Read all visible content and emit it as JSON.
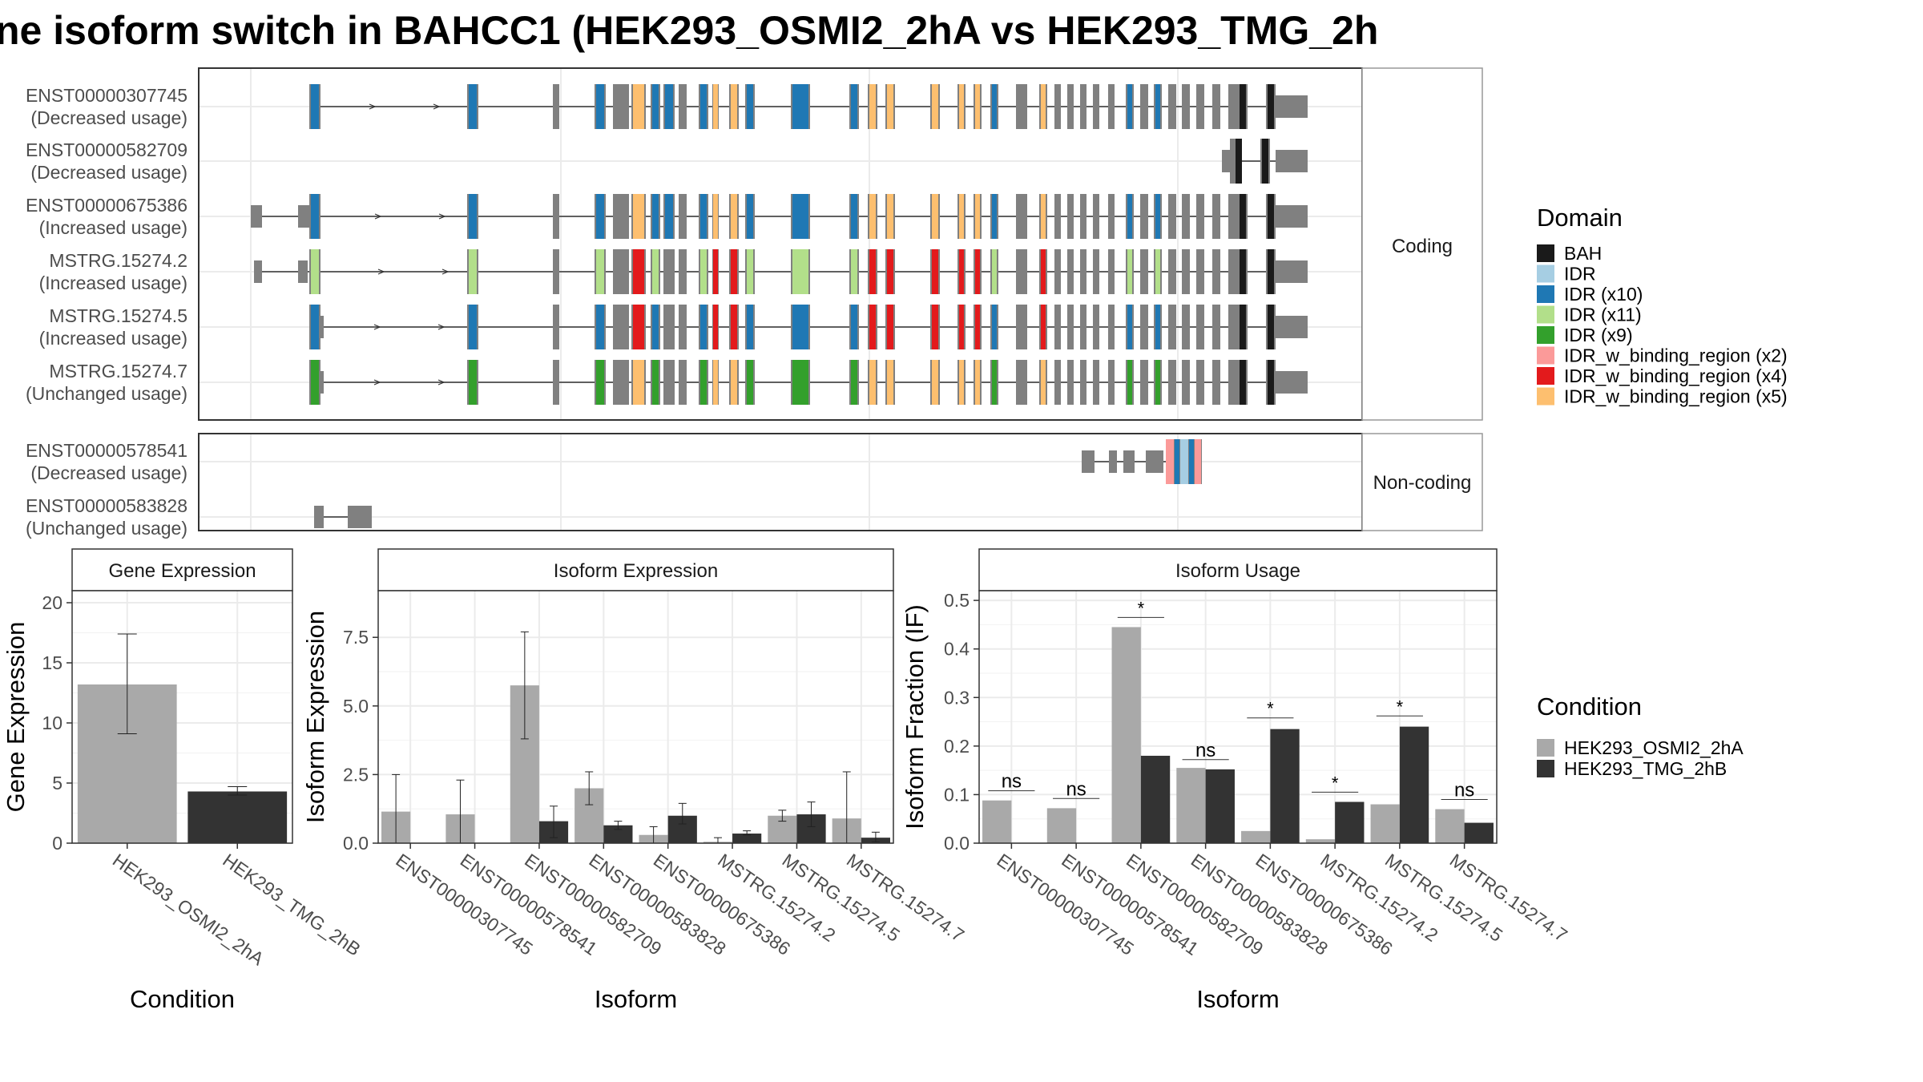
{
  "title": "ne isoform switch in BAHCC1 (HEK293_OSMI2_2hA vs HEK293_TMG_2h",
  "structure": {
    "coding_label": "Coding",
    "noncoding_label": "Non-coding",
    "coding": [
      {
        "id": "ENST00000307745",
        "usage": "(Decreased usage)",
        "extent": "long"
      },
      {
        "id": "ENST00000582709",
        "usage": "(Decreased usage)",
        "extent": "short"
      },
      {
        "id": "ENST00000675386",
        "usage": "(Increased usage)",
        "extent": "full"
      },
      {
        "id": "MSTRG.15274.2",
        "usage": "(Increased usage)",
        "extent": "full"
      },
      {
        "id": "MSTRG.15274.5",
        "usage": "(Increased usage)",
        "extent": "long"
      },
      {
        "id": "MSTRG.15274.7",
        "usage": "(Unchanged usage)",
        "extent": "long"
      }
    ],
    "noncoding": [
      {
        "id": "ENST00000578541",
        "usage": "(Decreased usage)"
      },
      {
        "id": "ENST00000583828",
        "usage": "(Unchanged usage)"
      }
    ]
  },
  "domain_legend": {
    "title": "Domain",
    "items": [
      {
        "label": "BAH",
        "color": "#1a1a1a"
      },
      {
        "label": "IDR",
        "color": "#a6cee3"
      },
      {
        "label": "IDR (x10)",
        "color": "#1f78b4"
      },
      {
        "label": "IDR (x11)",
        "color": "#b2df8a"
      },
      {
        "label": "IDR (x9)",
        "color": "#33a02c"
      },
      {
        "label": "IDR_w_binding_region (x2)",
        "color": "#fb9a99"
      },
      {
        "label": "IDR_w_binding_region (x4)",
        "color": "#e31a1c"
      },
      {
        "label": "IDR_w_binding_region (x5)",
        "color": "#fdbf6f"
      }
    ]
  },
  "condition_legend": {
    "title": "Condition",
    "items": [
      {
        "label": "HEK293_OSMI2_2hA",
        "color": "#a9a9a9"
      },
      {
        "label": "HEK293_TMG_2hB",
        "color": "#333333"
      }
    ]
  },
  "chart_data": [
    {
      "type": "bar",
      "panel_title": "Gene Expression",
      "xlabel": "Condition",
      "ylabel": "Gene Expression",
      "ylim": [
        0,
        21
      ],
      "yticks": [
        0,
        5,
        10,
        15,
        20
      ],
      "categories": [
        "HEK293_OSMI2_2hA",
        "HEK293_TMG_2hB"
      ],
      "values": [
        13.2,
        4.3
      ],
      "error_low": [
        9.1,
        4.0
      ],
      "error_high": [
        17.4,
        4.7
      ],
      "colors": [
        "#a9a9a9",
        "#333333"
      ]
    },
    {
      "type": "bar",
      "panel_title": "Isoform Expression",
      "xlabel": "Isoform",
      "ylabel": "Isoform Expression",
      "ylim": [
        0,
        9.2
      ],
      "yticks": [
        0,
        2.5,
        5,
        7.5
      ],
      "ytick_labels": [
        "0.0",
        "2.5",
        "5.0",
        "7.5"
      ],
      "categories": [
        "ENST00000307745",
        "ENST00000578541",
        "ENST00000582709",
        "ENST00000583828",
        "ENST00000675386",
        "MSTRG.15274.2",
        "MSTRG.15274.5",
        "MSTRG.15274.7"
      ],
      "series": [
        {
          "name": "HEK293_OSMI2_2hA",
          "color": "#a9a9a9",
          "values": [
            1.15,
            1.05,
            5.75,
            2.0,
            0.3,
            0.05,
            1.0,
            0.9
          ],
          "error_low": [
            0.0,
            0.0,
            3.8,
            1.4,
            0.0,
            0.0,
            0.8,
            0.0
          ],
          "error_high": [
            2.5,
            2.3,
            7.7,
            2.6,
            0.6,
            0.2,
            1.2,
            2.6
          ]
        },
        {
          "name": "HEK293_TMG_2hB",
          "color": "#333333",
          "values": [
            0.0,
            0.0,
            0.8,
            0.65,
            1.0,
            0.35,
            1.05,
            0.2
          ],
          "error_low": [
            0.0,
            0.0,
            0.2,
            0.5,
            0.7,
            0.3,
            0.6,
            0.05
          ],
          "error_high": [
            0.0,
            0.0,
            1.35,
            0.8,
            1.45,
            0.45,
            1.5,
            0.4
          ]
        }
      ]
    },
    {
      "type": "bar",
      "panel_title": "Isoform Usage",
      "xlabel": "Isoform",
      "ylabel": "Isoform Fraction (IF)",
      "ylim": [
        0,
        0.52
      ],
      "yticks": [
        0,
        0.1,
        0.2,
        0.3,
        0.4,
        0.5
      ],
      "ytick_labels": [
        "0.0",
        "0.1",
        "0.2",
        "0.3",
        "0.4",
        "0.5"
      ],
      "categories": [
        "ENST00000307745",
        "ENST00000578541",
        "ENST00000582709",
        "ENST00000583828",
        "ENST00000675386",
        "MSTRG.15274.2",
        "MSTRG.15274.5",
        "MSTRG.15274.7"
      ],
      "series": [
        {
          "name": "HEK293_OSMI2_2hA",
          "color": "#a9a9a9",
          "values": [
            0.088,
            0.072,
            0.445,
            0.155,
            0.025,
            0.008,
            0.08,
            0.07
          ]
        },
        {
          "name": "HEK293_TMG_2hB",
          "color": "#333333",
          "values": [
            0.0,
            0.0,
            0.18,
            0.152,
            0.235,
            0.085,
            0.24,
            0.042
          ]
        }
      ],
      "significance": [
        "ns",
        "ns",
        "*",
        "ns",
        "*",
        "*",
        "*",
        "ns"
      ],
      "significance_y": [
        0.108,
        0.092,
        0.465,
        0.172,
        0.258,
        0.105,
        0.262,
        0.09
      ]
    }
  ]
}
